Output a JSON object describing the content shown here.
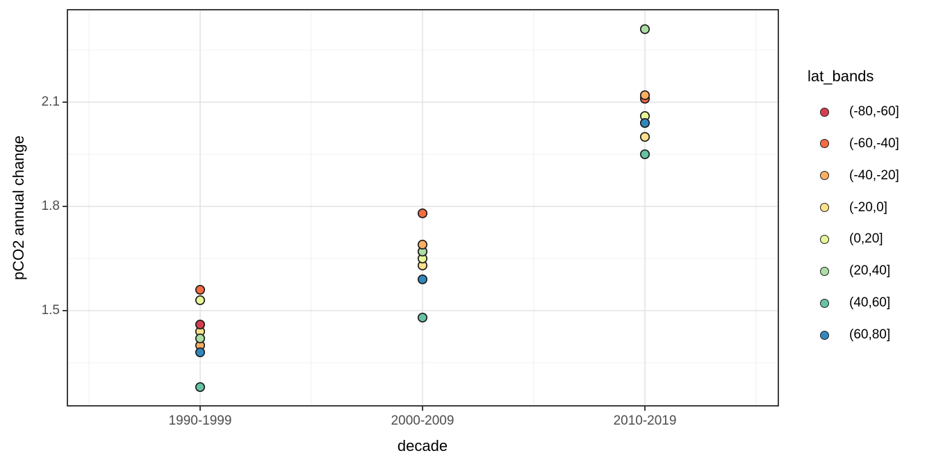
{
  "chart_data": {
    "type": "scatter",
    "title": "",
    "xlabel": "decade",
    "ylabel": "pCO2 annual change",
    "categories": [
      "1990-1999",
      "2000-2009",
      "2010-2019"
    ],
    "y_ticks": [
      {
        "label": "1.5",
        "value": 1.5
      },
      {
        "label": "1.8",
        "value": 1.8
      },
      {
        "label": "2.1",
        "value": 2.1
      }
    ],
    "y_minor_ticks": [
      1.35,
      1.65,
      1.95,
      2.25
    ],
    "ylim": [
      1.226,
      2.366
    ],
    "grid": true,
    "legend_title": "lat_bands",
    "legend_position": "right",
    "bands": [
      {
        "id": "band-80-60s",
        "label": "(-80,-60]",
        "color": "#d53e4f"
      },
      {
        "id": "band-60-40s",
        "label": "(-60,-40]",
        "color": "#f46d43"
      },
      {
        "id": "band-40-20s",
        "label": "(-40,-20]",
        "color": "#fdae61"
      },
      {
        "id": "band-20-0",
        "label": "(-20,0]",
        "color": "#fee08b"
      },
      {
        "id": "band-0-20",
        "label": "(0,20]",
        "color": "#e6f598"
      },
      {
        "id": "band-20-40",
        "label": "(20,40]",
        "color": "#abdda4"
      },
      {
        "id": "band-40-60",
        "label": "(40,60]",
        "color": "#66c2a5"
      },
      {
        "id": "band-60-80",
        "label": "(60,80]",
        "color": "#3288bd"
      }
    ],
    "series": [
      {
        "name": "(-80,-60]",
        "values": [
          1.46,
          1.67,
          2.11
        ],
        "occluded": [
          false,
          true,
          true
        ]
      },
      {
        "name": "(-60,-40]",
        "values": [
          1.56,
          1.78,
          2.11
        ],
        "occluded": [
          false,
          false,
          false
        ]
      },
      {
        "name": "(-40,-20]",
        "values": [
          1.4,
          1.69,
          2.12
        ],
        "occluded": [
          false,
          false,
          false
        ]
      },
      {
        "name": "(-20,0]",
        "values": [
          1.44,
          1.63,
          2.0
        ],
        "occluded": [
          false,
          false,
          false
        ]
      },
      {
        "name": "(0,20]",
        "values": [
          1.53,
          1.65,
          2.06
        ],
        "occluded": [
          false,
          false,
          false
        ]
      },
      {
        "name": "(20,40]",
        "values": [
          1.42,
          1.67,
          2.31
        ],
        "occluded": [
          false,
          false,
          false
        ]
      },
      {
        "name": "(40,60]",
        "values": [
          1.28,
          1.48,
          1.95
        ],
        "occluded": [
          false,
          false,
          false
        ]
      },
      {
        "name": "(60,80]",
        "values": [
          1.38,
          1.59,
          2.04
        ],
        "occluded": [
          false,
          false,
          false
        ]
      }
    ],
    "draw_order": [
      [
        6,
        1,
        4,
        2,
        3,
        0,
        5,
        7
      ],
      [
        0,
        3,
        4,
        5,
        2,
        1,
        7,
        6
      ],
      [
        0,
        1,
        2,
        5,
        4,
        7,
        3,
        6
      ]
    ]
  },
  "colors": {
    "background": "#ffffff",
    "panel_background": "#ffffff",
    "panel_border": "#333333",
    "grid_major": "#e2e2e2",
    "grid_minor": "#f0f0f0",
    "axis_text": "#4d4d4d",
    "title_text": "#000000",
    "tick_mark": "#333333",
    "point_stroke": "#1c1c1c"
  }
}
